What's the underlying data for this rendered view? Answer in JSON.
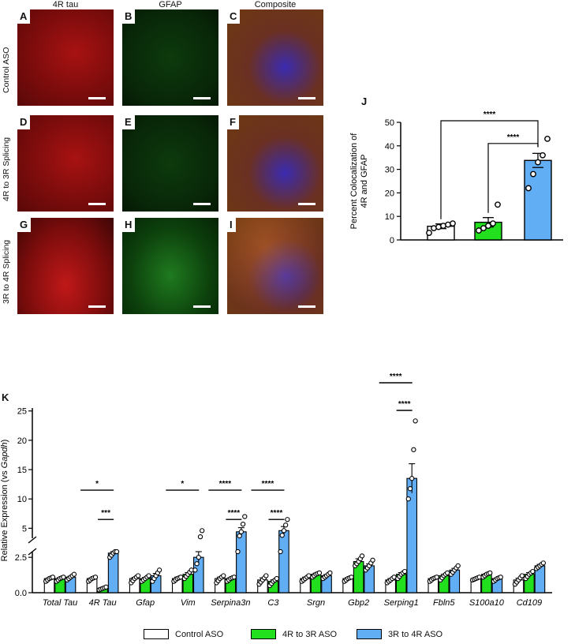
{
  "columns": [
    "4R tau",
    "GFAP",
    "Composite"
  ],
  "rows": [
    "Control ASO",
    "4R to 3R Splicing",
    "3R to 4R Splicing"
  ],
  "panel_letters": [
    "A",
    "B",
    "C",
    "D",
    "E",
    "F",
    "G",
    "H",
    "I"
  ],
  "colors": {
    "control": "#ffffff",
    "r4to3r": "#22e01e",
    "r3to4r": "#62aef5"
  },
  "chart_data": [
    {
      "id": "J",
      "type": "bar",
      "panel_label": "J",
      "categories": [
        "Control ASO",
        "4R to 3R ASO",
        "3R to 4R ASO"
      ],
      "values": [
        5.8,
        7.5,
        33.8
      ],
      "sem": [
        1.0,
        2.0,
        3.0
      ],
      "points": [
        [
          3,
          5,
          5.5,
          6,
          6.5,
          7
        ],
        [
          4,
          5,
          6,
          7,
          15
        ],
        [
          22,
          28,
          33,
          36,
          43
        ]
      ],
      "ylabel": "Percent Colocalization of 4R and GFAP",
      "ylim": [
        0,
        50
      ],
      "yticks": [
        0,
        10,
        20,
        30,
        40,
        50
      ],
      "comparisons": [
        {
          "from": 0,
          "to": 2,
          "label": "****"
        },
        {
          "from": 1,
          "to": 2,
          "label": "****"
        }
      ]
    },
    {
      "id": "K",
      "type": "bar",
      "panel_label": "K",
      "ylabel_prefix": "Relative Expression (vs ",
      "ylabel_italic": "Gapdh",
      "ylabel_suffix": ")",
      "y_lower_ticks": [
        "0.0",
        "2.5"
      ],
      "y_upper_ticks": [
        "5",
        "10",
        "15",
        "20",
        "25"
      ],
      "axis_break": [
        2.9,
        3.3
      ],
      "series": [
        {
          "name": "Control ASO",
          "values": [
            1.0,
            1.0,
            1.0,
            1.0,
            1.0,
            0.9,
            1.0,
            1.0,
            0.9,
            1.0,
            1.0,
            0.9
          ],
          "points": [
            [
              0.8,
              1.1
            ],
            [
              0.8,
              1.1
            ],
            [
              0.7,
              1.2
            ],
            [
              0.8,
              1.1
            ],
            [
              0.7,
              1.2
            ],
            [
              0.6,
              1.2
            ],
            [
              0.8,
              1.2
            ],
            [
              0.8,
              1.1
            ],
            [
              0.7,
              1.1
            ],
            [
              0.8,
              1.1
            ],
            [
              0.9,
              1.1
            ],
            [
              0.6,
              1.2
            ]
          ]
        },
        {
          "name": "4R to 3R ASO",
          "values": [
            1.0,
            0.3,
            1.0,
            1.3,
            1.0,
            0.8,
            1.3,
            2.2,
            1.3,
            1.2,
            1.3,
            1.3
          ],
          "points": [
            [
              0.8,
              1.1
            ],
            [
              0.2,
              0.4
            ],
            [
              0.8,
              1.2
            ],
            [
              1.0,
              1.6
            ],
            [
              0.8,
              1.1
            ],
            [
              0.5,
              1.0
            ],
            [
              1.1,
              1.4
            ],
            [
              1.9,
              2.6
            ],
            [
              1.0,
              1.5
            ],
            [
              0.9,
              1.4
            ],
            [
              1.1,
              1.4
            ],
            [
              1.0,
              1.5
            ]
          ]
        },
        {
          "name": "3R to 4R ASO",
          "values": [
            1.1,
            2.8,
            1.2,
            2.5,
            4.4,
            4.6,
            1.2,
            1.9,
            13.5,
            1.6,
            1.0,
            1.9
          ],
          "points": [
            [
              0.9,
              1.3
            ],
            [
              2.5,
              3.1
            ],
            [
              0.8,
              1.6
            ],
            [
              1.6,
              4.6
            ],
            [
              3.0,
              7.0
            ],
            [
              3.0,
              6.5
            ],
            [
              1.0,
              1.4
            ],
            [
              1.6,
              2.3
            ],
            [
              10.0,
              23.3
            ],
            [
              1.3,
              1.9
            ],
            [
              0.8,
              1.1
            ],
            [
              1.7,
              2.1
            ]
          ]
        }
      ],
      "sem": [
        [
          0.05,
          0.05,
          0.08,
          0.1,
          0.1,
          0.15,
          0.1,
          0.06,
          0.1,
          0.08,
          0.04,
          0.12
        ],
        [
          0.06,
          0.03,
          0.08,
          0.12,
          0.06,
          0.1,
          0.08,
          0.2,
          0.12,
          0.1,
          0.06,
          0.12
        ],
        [
          0.06,
          0.15,
          0.16,
          0.5,
          0.7,
          0.7,
          0.08,
          0.14,
          2.5,
          0.12,
          0.05,
          0.1
        ]
      ],
      "categories": [
        "Total Tau",
        "4R Tau",
        "Gfap",
        "Vim",
        "Serpina3n",
        "C3",
        "Srgn",
        "Gbp2",
        "Serping1",
        "Fbln5",
        "S100a10",
        "Cd109"
      ],
      "significance": [
        {
          "gene": 1,
          "long": "*",
          "short": "***"
        },
        {
          "gene": 3,
          "long": "*",
          "short": null
        },
        {
          "gene": 4,
          "long": "****",
          "short": "****"
        },
        {
          "gene": 5,
          "long": "****",
          "short": "****"
        },
        {
          "gene": 8,
          "long": "****",
          "short": "****"
        }
      ]
    }
  ],
  "legend": [
    "Control ASO",
    "4R to 3R ASO",
    "3R to 4R ASO"
  ]
}
